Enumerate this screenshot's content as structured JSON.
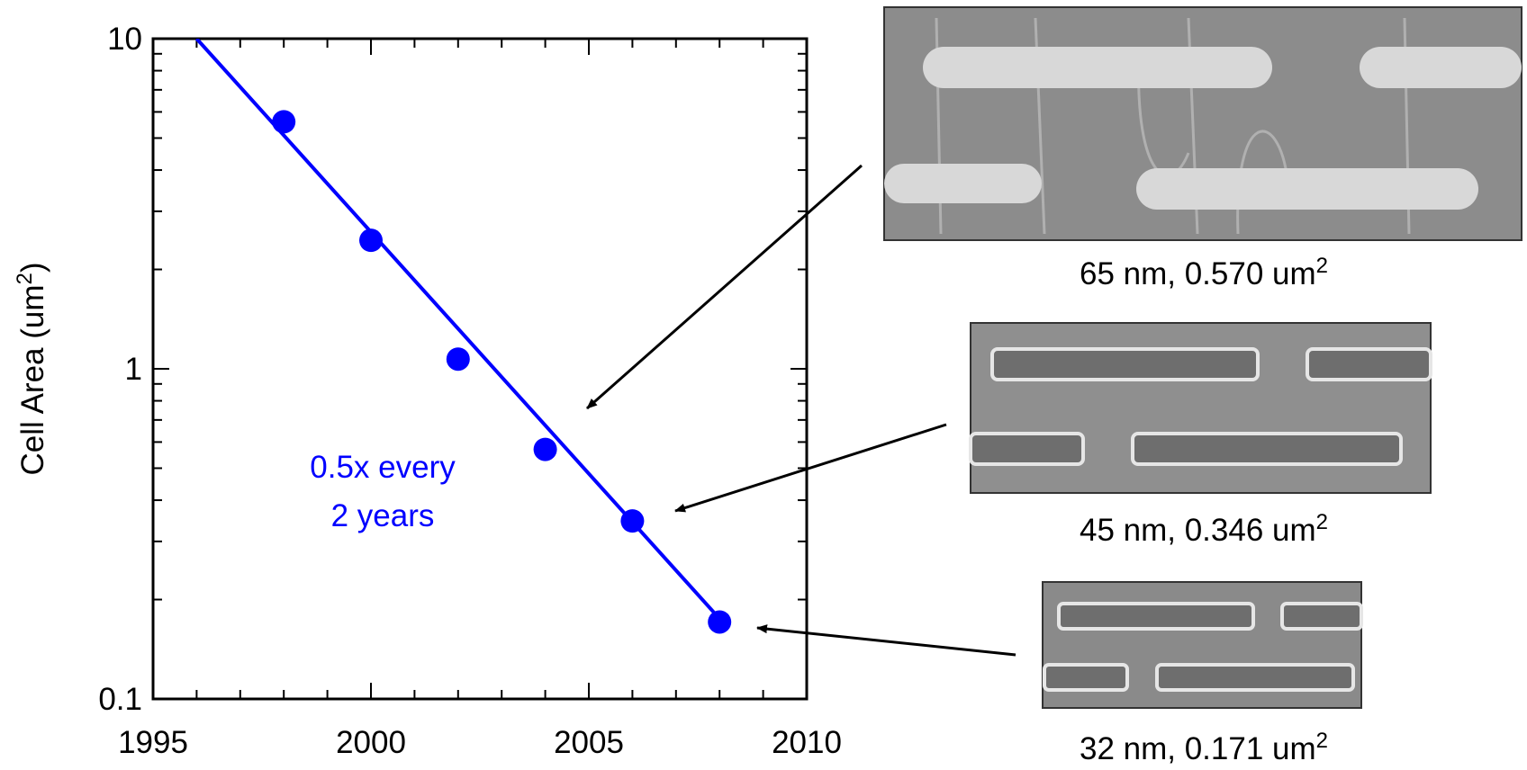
{
  "chart_data": {
    "type": "scatter",
    "y_label": {
      "text": "Cell Area (um",
      "sup": "2",
      "close": ")"
    },
    "y_scale": "log",
    "xlim": [
      1995,
      2010
    ],
    "xticks": [
      1995,
      2000,
      2005,
      2010
    ],
    "x_minor_ticks": [
      1996,
      1997,
      1998,
      1999,
      2001,
      2002,
      2003,
      2004,
      2006,
      2007,
      2008,
      2009
    ],
    "ylim": [
      0.1,
      10
    ],
    "yticks": [
      0.1,
      1,
      10
    ],
    "y_minor_ticks": [
      0.2,
      0.3,
      0.4,
      0.5,
      0.6,
      0.7,
      0.8,
      0.9,
      2,
      3,
      4,
      5,
      6,
      7,
      8,
      9
    ],
    "points": {
      "color": "#0000ff",
      "x": [
        1998,
        2000,
        2002,
        2004,
        2006,
        2008
      ],
      "values": [
        5.6,
        2.45,
        1.07,
        0.57,
        0.346,
        0.171
      ]
    },
    "fit_line": {
      "color": "#0000ff",
      "x": [
        1996,
        2008
      ],
      "values": [
        10,
        0.175
      ]
    },
    "annotation": [
      "0.5x every",
      "2 years"
    ],
    "images": [
      {
        "caption": "65 nm, 0.570 um",
        "sup": "2"
      },
      {
        "caption": "45 nm, 0.346 um",
        "sup": "2"
      },
      {
        "caption": "32 nm, 0.171 um",
        "sup": "2"
      }
    ]
  }
}
